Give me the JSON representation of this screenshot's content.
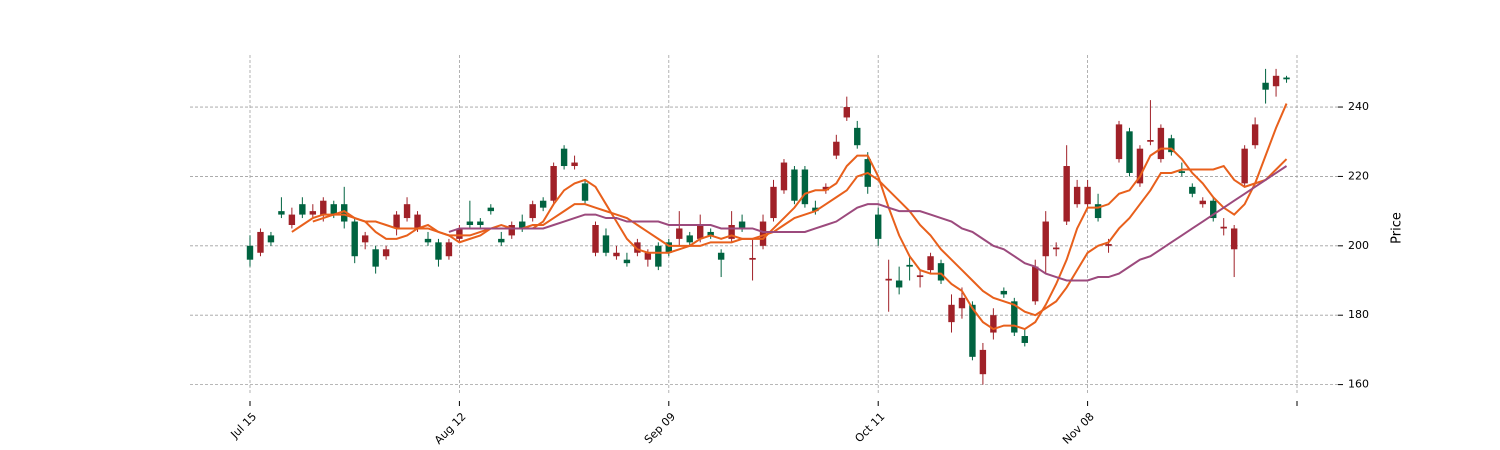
{
  "chart_data": {
    "type": "candlestick",
    "categories": [
      "Jul 15",
      null,
      null,
      null,
      null,
      null,
      null,
      null,
      null,
      null,
      null,
      null,
      null,
      null,
      null,
      null,
      null,
      null,
      null,
      null,
      "Aug 12",
      null,
      null,
      null,
      null,
      null,
      null,
      null,
      null,
      null,
      null,
      null,
      null,
      null,
      null,
      null,
      null,
      null,
      null,
      null,
      "Sep 09",
      null,
      null,
      null,
      null,
      null,
      null,
      null,
      null,
      null,
      null,
      null,
      null,
      null,
      null,
      null,
      null,
      null,
      null,
      null,
      "Oct 11",
      null,
      null,
      null,
      null,
      null,
      null,
      null,
      null,
      null,
      null,
      null,
      null,
      null,
      null,
      null,
      null,
      null,
      null,
      null,
      "Nov 08",
      null,
      null,
      null,
      null,
      null,
      null,
      null,
      null,
      null,
      null,
      null,
      null,
      null,
      null,
      null,
      null,
      null,
      null,
      null
    ],
    "xticks": [
      0,
      20,
      40,
      60,
      80,
      100
    ],
    "open": [
      196,
      204,
      201,
      209,
      209,
      209,
      210,
      213,
      209,
      207,
      197,
      203,
      194,
      199,
      209,
      212,
      209,
      201,
      196,
      201,
      205,
      206,
      206,
      210,
      201,
      206,
      205,
      212,
      211,
      223,
      223,
      224,
      213,
      206,
      198,
      198,
      195,
      201,
      198,
      194,
      198,
      205,
      201,
      206,
      203,
      196,
      206,
      205,
      196.5,
      207,
      217,
      224,
      213,
      212,
      210,
      217,
      230,
      240,
      229,
      217,
      202,
      190.5,
      188,
      194,
      191.5,
      197,
      190,
      183,
      185,
      168,
      170,
      180,
      186,
      175,
      172,
      194,
      207,
      199.5,
      223,
      217,
      217,
      208,
      200.5,
      235,
      221,
      228,
      230.5,
      234,
      227,
      221,
      215,
      213,
      208,
      205.5,
      205,
      228,
      235,
      245,
      249,
      248
    ],
    "high": [
      203,
      205,
      204,
      214,
      211,
      214,
      212,
      214,
      213,
      217,
      208,
      204,
      200,
      200,
      210,
      214,
      210,
      204,
      202,
      202,
      206,
      213,
      208,
      212,
      204,
      207,
      209,
      213,
      214,
      224,
      229,
      226,
      219,
      207,
      205,
      200,
      198,
      202,
      199,
      201,
      202,
      210,
      204,
      209,
      205,
      199,
      210,
      209,
      202,
      209,
      219,
      225,
      223,
      223,
      213,
      218,
      232,
      243,
      236,
      227,
      211,
      196,
      194,
      197,
      193,
      198,
      196,
      186,
      188,
      184,
      172,
      182,
      188,
      185,
      176,
      196,
      210,
      201,
      229,
      219,
      219,
      215,
      202,
      236,
      234,
      229,
      242,
      235,
      232,
      224,
      218,
      214,
      214,
      208,
      206,
      229,
      237,
      251,
      251,
      249
    ],
    "low": [
      194,
      197,
      200,
      208,
      205,
      208,
      208,
      207,
      208,
      205,
      195,
      199,
      192,
      196,
      203,
      207,
      204,
      200,
      194,
      196,
      201,
      205,
      205,
      209,
      200,
      202,
      204,
      207,
      210,
      212,
      222,
      222,
      212,
      197,
      197,
      196,
      194,
      197,
      194,
      193,
      197,
      200,
      200,
      201,
      202,
      191,
      201,
      204,
      190,
      199,
      207,
      215,
      212,
      211,
      209,
      215,
      225,
      236,
      228,
      215,
      200,
      181,
      186,
      190,
      188,
      192,
      189,
      175,
      179,
      167,
      160,
      173,
      185,
      174,
      171,
      183,
      192,
      197,
      206,
      211,
      211,
      207,
      198,
      224,
      220,
      217,
      229,
      224,
      226,
      220,
      214,
      211,
      207,
      203,
      191,
      217,
      228,
      241,
      243,
      247
    ],
    "close": [
      200,
      198,
      203,
      210,
      206,
      212,
      209,
      209,
      212,
      212,
      207,
      201,
      199,
      197,
      205,
      208,
      205,
      202,
      201,
      197,
      202,
      207,
      207,
      211,
      202,
      203,
      207,
      208,
      213,
      213,
      228,
      223,
      218,
      198,
      203,
      197,
      196,
      198,
      196,
      200,
      201,
      202,
      203,
      202,
      204,
      198,
      202,
      207,
      196,
      200,
      208,
      216,
      222,
      222,
      211,
      216,
      226,
      237,
      234,
      225,
      209,
      190,
      190,
      194.5,
      191,
      193,
      195,
      178,
      182,
      183,
      163,
      175,
      187,
      184,
      174,
      184,
      197,
      199,
      207,
      212,
      212,
      212,
      200,
      225,
      233,
      218,
      230,
      225,
      231,
      221.5,
      217,
      212,
      213,
      205,
      199,
      218,
      229,
      247,
      246,
      248.5
    ],
    "up_color": "#006340",
    "down_color": "#a02128",
    "series": [
      {
        "color": "#e8601c",
        "values": [
          null,
          null,
          null,
          null,
          204,
          206,
          208,
          209,
          209,
          210,
          208,
          207,
          204,
          202,
          202,
          203,
          205,
          206,
          204,
          203,
          201,
          202,
          203,
          205,
          206,
          205,
          205,
          205,
          207,
          212,
          216,
          218,
          219,
          217,
          212,
          207,
          202,
          199,
          198,
          198,
          198,
          199,
          200,
          202,
          203,
          202,
          203,
          202,
          202,
          202,
          205,
          208,
          211,
          215,
          216,
          216,
          218,
          223,
          226,
          226,
          220,
          211,
          203,
          197,
          193,
          192,
          192,
          189,
          187,
          182,
          178,
          176,
          177,
          177,
          176,
          178,
          183,
          189,
          196,
          205,
          211,
          211,
          212,
          215,
          216,
          220,
          226,
          228,
          228,
          225,
          221,
          218,
          214,
          211,
          209,
          212,
          218,
          226,
          234,
          241
        ]
      },
      {
        "color": "#e8601c",
        "values": [
          null,
          null,
          null,
          null,
          null,
          null,
          207,
          208,
          209,
          209,
          208,
          207,
          207,
          206,
          205,
          205,
          205,
          205,
          204,
          203,
          203,
          203,
          204,
          205,
          205,
          205,
          205,
          206,
          206,
          208,
          210,
          212,
          212,
          211,
          210,
          209,
          208,
          206,
          204,
          202,
          200,
          200,
          200,
          200,
          201,
          201,
          201,
          202,
          202,
          203,
          204,
          206,
          208,
          209,
          210,
          212,
          214,
          216,
          220,
          221,
          219,
          216,
          213,
          210,
          206,
          203,
          199,
          196,
          193,
          190,
          187,
          185,
          184,
          183,
          181,
          180,
          182,
          184,
          188,
          193,
          198,
          200,
          201,
          205,
          208,
          212,
          216,
          221,
          221,
          222,
          222,
          222,
          222,
          223,
          219,
          217,
          218,
          219,
          222,
          225
        ]
      },
      {
        "color": "#9c4a7d",
        "values": [
          null,
          null,
          null,
          null,
          null,
          null,
          null,
          null,
          null,
          null,
          null,
          null,
          null,
          null,
          null,
          null,
          null,
          null,
          null,
          204,
          205,
          205,
          205,
          205,
          205,
          205,
          205,
          205,
          205,
          206,
          207,
          208,
          209,
          209,
          208,
          208,
          207,
          207,
          207,
          207,
          206,
          206,
          206,
          206,
          206,
          205,
          205,
          205,
          205,
          204,
          204,
          204,
          204,
          204,
          205,
          206,
          207,
          209,
          211,
          212,
          212,
          211,
          210,
          210,
          210,
          209,
          208,
          207,
          205,
          204,
          202,
          200,
          199,
          197,
          195,
          194,
          192,
          191,
          190,
          190,
          190,
          191,
          191,
          192,
          194,
          196,
          197,
          199,
          201,
          203,
          205,
          207,
          209,
          211,
          213,
          215,
          217,
          219,
          221,
          223
        ]
      }
    ],
    "ylabel": "Price",
    "ylim": [
      157,
      255
    ],
    "yticks": [
      160,
      180,
      200,
      220,
      240
    ],
    "grid": true
  }
}
